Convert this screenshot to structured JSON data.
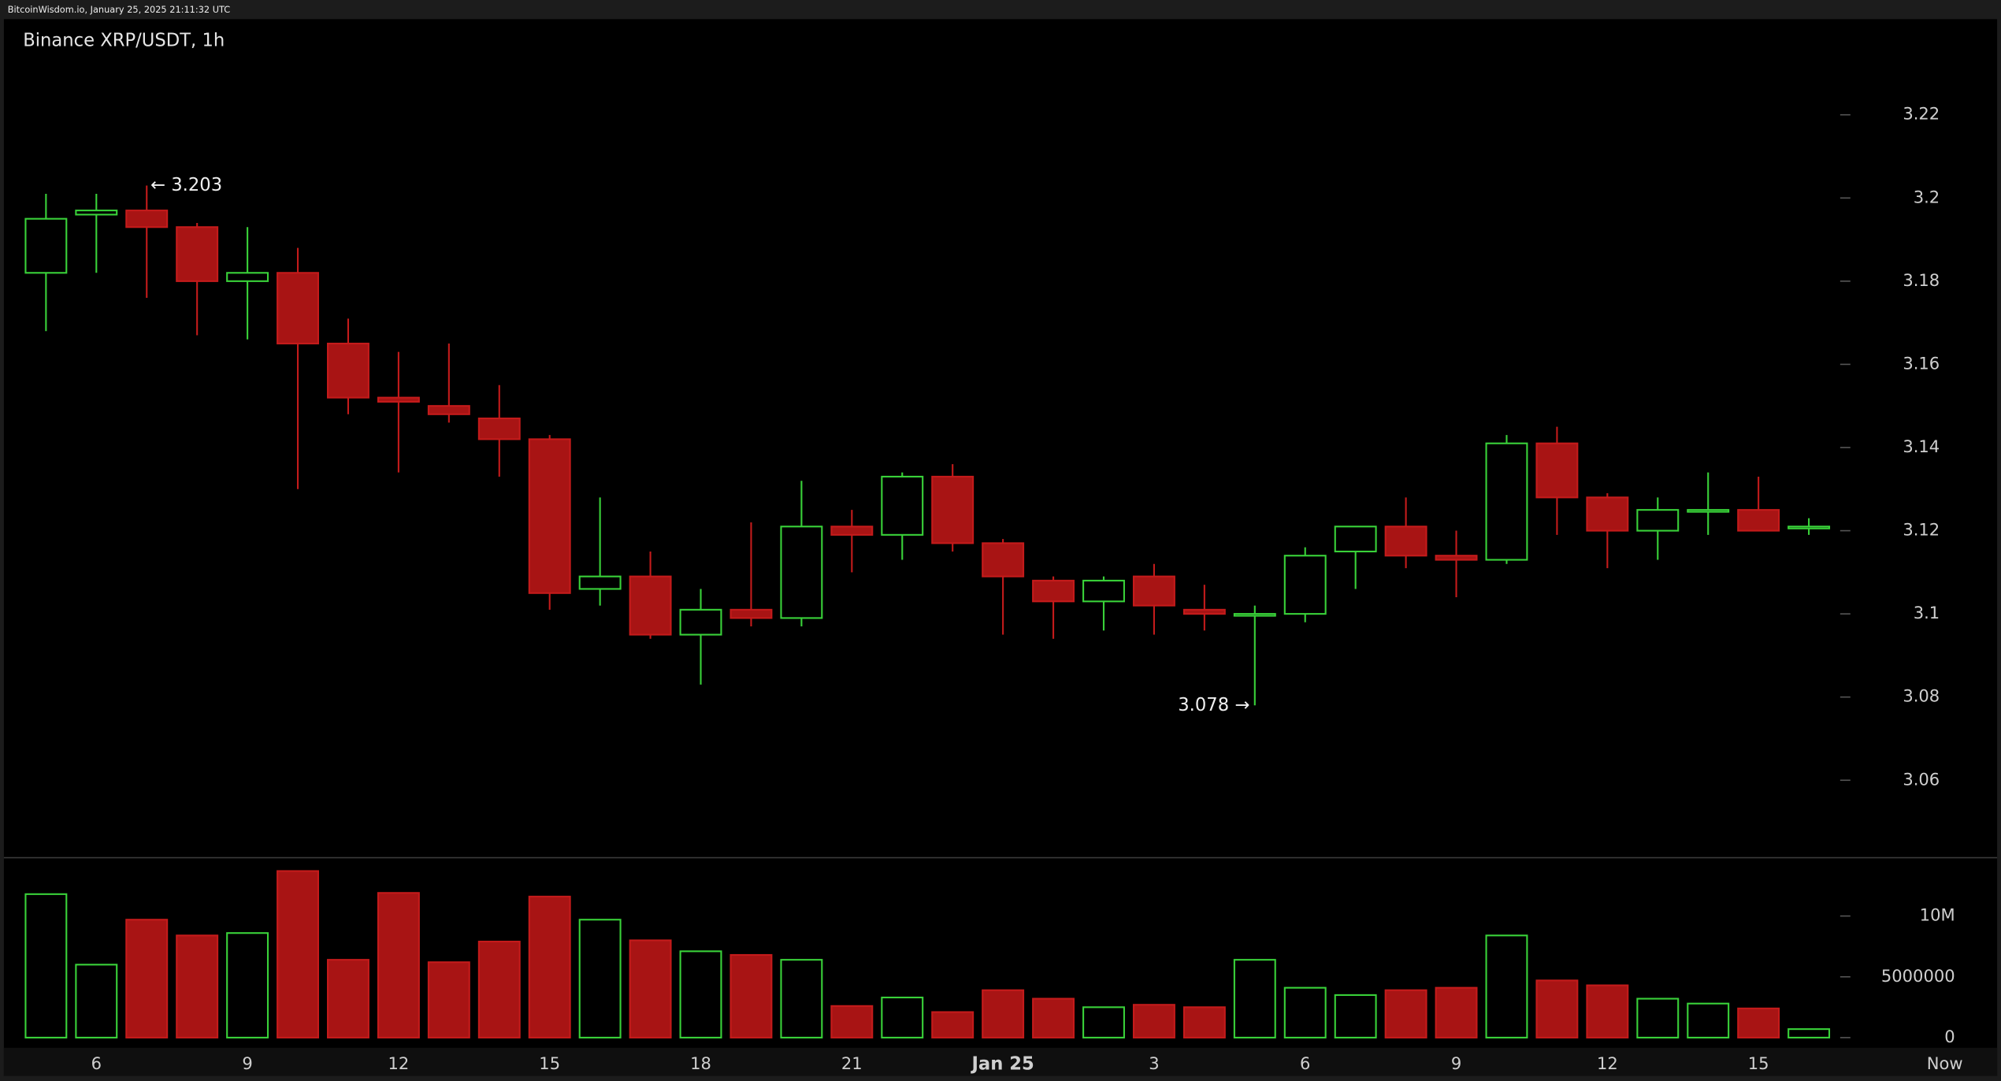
{
  "header": {
    "source": "BitcoinWisdom.io, January 25, 2025 21:11:32 UTC"
  },
  "chart_data": {
    "type": "candlestick",
    "title": "Binance XRP/USDT, 1h",
    "categories": [
      null,
      "6",
      null,
      null,
      "9",
      null,
      null,
      "12",
      null,
      null,
      "15",
      null,
      null,
      "18",
      null,
      null,
      "21",
      null,
      null,
      "Jan 25",
      null,
      null,
      "3",
      null,
      null,
      "6",
      null,
      null,
      "9",
      null,
      null,
      "12",
      null,
      null,
      "15",
      null
    ],
    "x_end_label": "Now",
    "open": [
      3.182,
      3.196,
      3.197,
      3.193,
      3.18,
      3.182,
      3.165,
      3.152,
      3.15,
      3.147,
      3.142,
      3.106,
      3.109,
      3.095,
      3.101,
      3.099,
      3.121,
      3.119,
      3.133,
      3.117,
      3.108,
      3.103,
      3.109,
      3.101,
      3.1,
      3.1,
      3.115,
      3.121,
      3.114,
      3.113,
      3.141,
      3.128,
      3.12,
      3.125,
      3.125,
      3.121
    ],
    "high": [
      3.201,
      3.201,
      3.203,
      3.194,
      3.193,
      3.188,
      3.171,
      3.163,
      3.165,
      3.155,
      3.143,
      3.128,
      3.115,
      3.106,
      3.122,
      3.132,
      3.125,
      3.134,
      3.136,
      3.118,
      3.109,
      3.109,
      3.112,
      3.107,
      3.102,
      3.116,
      3.121,
      3.128,
      3.12,
      3.143,
      3.145,
      3.129,
      3.128,
      3.134,
      3.133,
      3.123
    ],
    "low": [
      3.168,
      3.182,
      3.176,
      3.167,
      3.166,
      3.13,
      3.148,
      3.134,
      3.146,
      3.133,
      3.101,
      3.102,
      3.094,
      3.083,
      3.097,
      3.097,
      3.11,
      3.113,
      3.115,
      3.095,
      3.094,
      3.096,
      3.095,
      3.096,
      3.078,
      3.098,
      3.106,
      3.111,
      3.104,
      3.112,
      3.119,
      3.111,
      3.113,
      3.119,
      3.12,
      3.119
    ],
    "close": [
      3.195,
      3.197,
      3.193,
      3.18,
      3.182,
      3.165,
      3.152,
      3.151,
      3.148,
      3.142,
      3.105,
      3.109,
      3.095,
      3.101,
      3.099,
      3.121,
      3.119,
      3.133,
      3.117,
      3.109,
      3.103,
      3.108,
      3.102,
      3.1,
      3.1,
      3.114,
      3.121,
      3.114,
      3.113,
      3.141,
      3.128,
      3.12,
      3.125,
      3.125,
      3.12,
      3.121
    ],
    "volume": [
      11800000,
      6000000,
      9700000,
      8400000,
      8600000,
      13700000,
      6400000,
      11900000,
      6200000,
      7900000,
      11600000,
      9700000,
      8000000,
      7100000,
      6800000,
      6400000,
      2600000,
      3300000,
      2100000,
      3900000,
      3200000,
      2500000,
      2700000,
      2500000,
      6400000,
      4100000,
      3500000,
      3900000,
      4100000,
      8400000,
      4700000,
      4300000,
      3200000,
      2800000,
      2400000,
      700000
    ],
    "up_color": "#39d139",
    "down_color": "#a81414",
    "ylim": [
      3.042,
      3.243
    ],
    "yticks": [
      3.06,
      3.08,
      3.1,
      3.12,
      3.14,
      3.16,
      3.18,
      3.2,
      3.22
    ],
    "y2lim": [
      0,
      14800000
    ],
    "y2ticks": [
      0,
      5000000,
      {
        "value": 10000000,
        "label": "10M"
      }
    ],
    "annotations": [
      {
        "label": "← 3.203",
        "value": 3.203
      },
      {
        "label": "3.078 →",
        "value": 3.078
      }
    ]
  }
}
